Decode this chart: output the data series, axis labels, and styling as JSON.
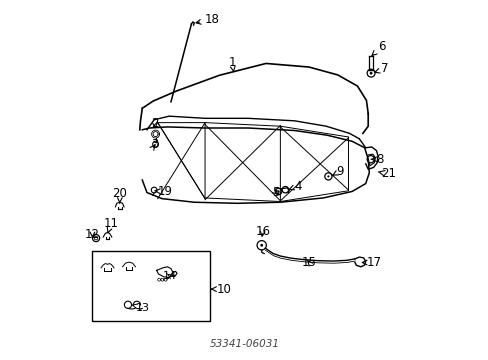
{
  "title": "",
  "background_color": "#ffffff",
  "fig_width": 4.89,
  "fig_height": 3.6,
  "dpi": 100,
  "text_color": "#000000",
  "line_color": "#000000",
  "font_size": 8.5
}
